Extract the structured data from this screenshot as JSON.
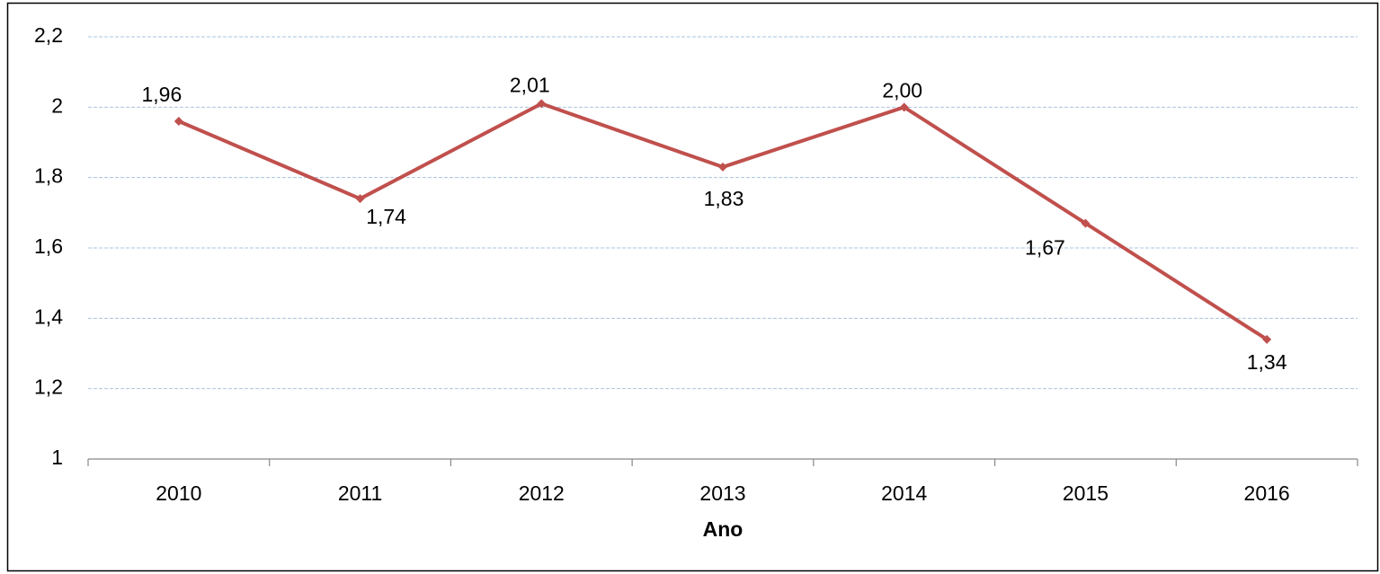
{
  "chart_data": {
    "type": "line",
    "x_label": "Ano",
    "categories": [
      "2010",
      "2011",
      "2012",
      "2013",
      "2014",
      "2015",
      "2016"
    ],
    "series": [
      {
        "color": "#c0504d",
        "values": [
          1.96,
          1.74,
          2.01,
          1.83,
          2.0,
          1.67,
          1.34
        ],
        "value_labels": [
          "1,96",
          "1,74",
          "2,01",
          "1,83",
          "2,00",
          "1,67",
          "1,34"
        ]
      }
    ],
    "ylim": [
      1,
      2.2
    ],
    "yticks": [
      1,
      {
        "value": 1.2,
        "label": "1,2"
      },
      {
        "value": 1.4,
        "label": "1,4"
      },
      {
        "value": 1.6,
        "label": "1,6"
      },
      {
        "value": 1.8,
        "label": "1,8"
      },
      2,
      {
        "value": 2.2,
        "label": "2,2"
      }
    ],
    "grid": true
  }
}
